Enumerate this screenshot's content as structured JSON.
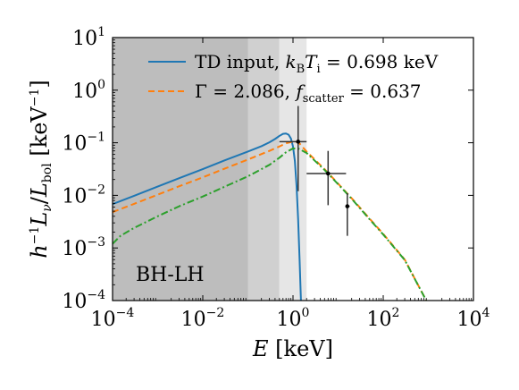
{
  "chart_data": {
    "type": "line",
    "title": "",
    "xlabel": "E [keV]",
    "ylabel": "h^{-1} L_ν/L_bol [keV^{-1}]",
    "xscale": "log",
    "yscale": "log",
    "xlim": [
      0.0001,
      10000
    ],
    "ylim": [
      0.0001,
      10
    ],
    "x_ticks": [
      {
        "value": 0.0001,
        "base": "10",
        "exp": "−4"
      },
      {
        "value": 0.01,
        "base": "10",
        "exp": "−2"
      },
      {
        "value": 1,
        "base": "10",
        "exp": "0"
      },
      {
        "value": 100,
        "base": "10",
        "exp": "2"
      },
      {
        "value": 10000,
        "base": "10",
        "exp": "4"
      }
    ],
    "y_ticks": [
      {
        "value": 0.0001,
        "base": "10",
        "exp": "−4"
      },
      {
        "value": 0.001,
        "base": "10",
        "exp": "−3"
      },
      {
        "value": 0.01,
        "base": "10",
        "exp": "−2"
      },
      {
        "value": 0.1,
        "base": "10",
        "exp": "−1"
      },
      {
        "value": 1,
        "base": "10",
        "exp": "0"
      },
      {
        "value": 10,
        "base": "10",
        "exp": "1"
      }
    ],
    "grid": false,
    "legend_position": "top",
    "annotation": "BH-LH",
    "shaded_bands": [
      {
        "x0": 0.0001,
        "x1": 0.1,
        "color": "#bdbdbd"
      },
      {
        "x0": 0.1,
        "x1": 0.5,
        "color": "#d0d0d0"
      },
      {
        "x0": 0.5,
        "x1": 2.0,
        "color": "#e6e6e6"
      }
    ],
    "series": [
      {
        "name": "TD input, k_B T_i = 0.698 keV",
        "style": "solid",
        "color": "#1f77b4",
        "x": [
          0.0001,
          0.0003,
          0.001,
          0.003,
          0.01,
          0.03,
          0.1,
          0.2,
          0.3,
          0.4,
          0.5,
          0.6,
          0.7,
          0.8,
          0.9,
          1.0,
          1.1,
          1.2,
          1.3,
          1.4,
          1.5
        ],
        "y": [
          0.0068,
          0.0098,
          0.0147,
          0.0212,
          0.0316,
          0.046,
          0.068,
          0.086,
          0.102,
          0.118,
          0.135,
          0.148,
          0.15,
          0.142,
          0.12,
          0.085,
          0.045,
          0.015,
          0.0035,
          0.0006,
          0.0001
        ]
      },
      {
        "name": "Γ = 2.086, f_scatter = 0.637",
        "style": "dashed",
        "color": "#ff7f0e",
        "x": [
          0.0001,
          0.0003,
          0.001,
          0.003,
          0.01,
          0.03,
          0.1,
          0.3,
          0.5,
          0.7,
          1.0,
          1.3,
          2,
          5,
          10,
          20,
          50,
          100,
          300,
          900
        ],
        "y": [
          0.0048,
          0.0069,
          0.0103,
          0.0149,
          0.022,
          0.032,
          0.048,
          0.07,
          0.085,
          0.098,
          0.105,
          0.104,
          0.068,
          0.0315,
          0.0167,
          0.0088,
          0.0036,
          0.00185,
          0.0006,
          0.0001
        ]
      },
      {
        "name": "",
        "style": "dashdot",
        "color": "#2ca02c",
        "x": [
          0.0001,
          0.00015,
          0.0003,
          0.001,
          0.003,
          0.01,
          0.03,
          0.1,
          0.3,
          0.5,
          0.7,
          1.0,
          1.3,
          2,
          5,
          10,
          20,
          50,
          100,
          300,
          900
        ],
        "y": [
          0.0012,
          0.0017,
          0.0024,
          0.004,
          0.0062,
          0.0095,
          0.0145,
          0.023,
          0.038,
          0.052,
          0.066,
          0.078,
          0.078,
          0.064,
          0.0305,
          0.0163,
          0.0086,
          0.0035,
          0.0018,
          0.00059,
          0.0001
        ]
      }
    ],
    "data_points": [
      {
        "x": 1.3,
        "y": 0.105,
        "xerr": [
          0.5,
          2.0
        ],
        "yerr": [
          0.012,
          0.5
        ]
      },
      {
        "x": 6.0,
        "y": 0.026,
        "xerr": [
          2.0,
          15.0
        ],
        "yerr": [
          0.0065,
          0.07
        ]
      },
      {
        "x": 16.0,
        "y": 0.0062,
        "xerr": [
          15.0,
          18.0
        ],
        "yerr": [
          0.0017,
          0.011
        ]
      }
    ],
    "colors": {
      "td_input": "#1f77b4",
      "powerlaw": "#ff7f0e",
      "scatter": "#2ca02c",
      "data": "#333333"
    }
  }
}
